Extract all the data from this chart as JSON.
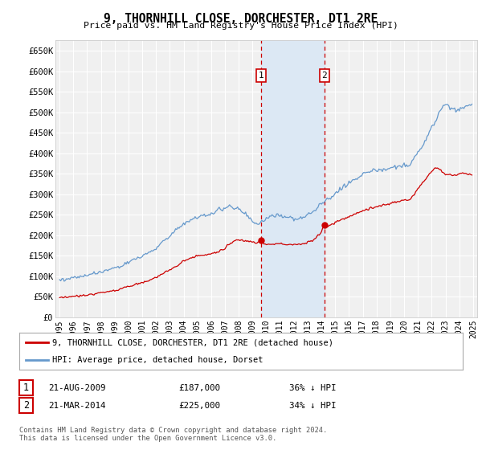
{
  "title": "9, THORNHILL CLOSE, DORCHESTER, DT1 2RE",
  "subtitle": "Price paid vs. HM Land Registry's House Price Index (HPI)",
  "ylim": [
    0,
    675000
  ],
  "xlim": [
    1994.7,
    2025.3
  ],
  "yticks": [
    0,
    50000,
    100000,
    150000,
    200000,
    250000,
    300000,
    350000,
    400000,
    450000,
    500000,
    550000,
    600000,
    650000
  ],
  "ytick_labels": [
    "£0",
    "£50K",
    "£100K",
    "£150K",
    "£200K",
    "£250K",
    "£300K",
    "£350K",
    "£400K",
    "£450K",
    "£500K",
    "£550K",
    "£600K",
    "£650K"
  ],
  "xticks": [
    1995,
    1996,
    1997,
    1998,
    1999,
    2000,
    2001,
    2002,
    2003,
    2004,
    2005,
    2006,
    2007,
    2008,
    2009,
    2010,
    2011,
    2012,
    2013,
    2014,
    2015,
    2016,
    2017,
    2018,
    2019,
    2020,
    2021,
    2022,
    2023,
    2024,
    2025
  ],
  "sale1_year": 2009.64,
  "sale1_value": 187000,
  "sale2_year": 2014.22,
  "sale2_value": 225000,
  "vline1_year": 2009.64,
  "vline2_year": 2014.22,
  "shade_start": 2009.64,
  "shade_end": 2014.22,
  "hpi_color": "#6699cc",
  "house_color": "#cc0000",
  "vline_color": "#cc0000",
  "shade_color": "#dce8f4",
  "marker_color": "#cc0000",
  "legend_house_label": "9, THORNHILL CLOSE, DORCHESTER, DT1 2RE (detached house)",
  "legend_hpi_label": "HPI: Average price, detached house, Dorset",
  "note1_date": "21-AUG-2009",
  "note1_price": "£187,000",
  "note1_info": "36% ↓ HPI",
  "note2_date": "21-MAR-2014",
  "note2_price": "£225,000",
  "note2_info": "34% ↓ HPI",
  "footer": "Contains HM Land Registry data © Crown copyright and database right 2024.\nThis data is licensed under the Open Government Licence v3.0.",
  "bg_color": "#ffffff",
  "plot_bg_color": "#f0f0f0"
}
